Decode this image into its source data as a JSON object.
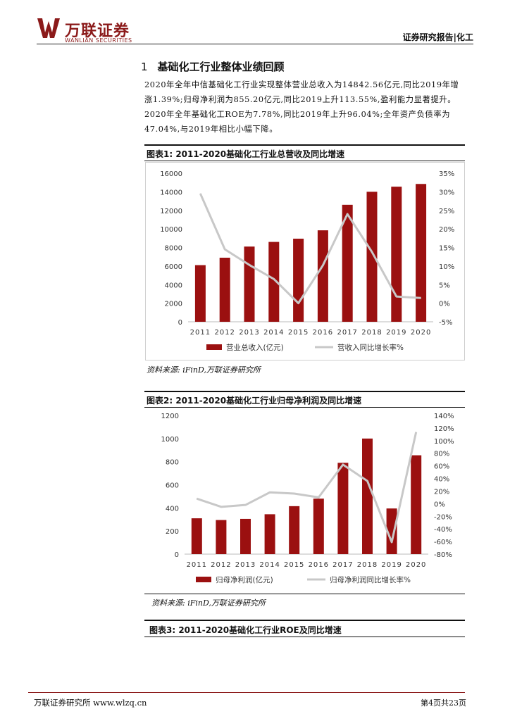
{
  "header": {
    "brand_cn": "万联证券",
    "brand_en": "WANLIAN SECURITIES",
    "category": "证券研究报告|化工",
    "brand_color": "#8b1a1a"
  },
  "section": {
    "number": "1",
    "title": "基础化工行业整体业绩回顾",
    "summary": "2020年全年中信基础化工行业实现整体营业总收入为14842.56亿元,同比2019年增涨1.39%;归母净利润为855.20亿元,同比2019上升113.55%,盈利能力显著提升。2020年全年基础化工ROE为7.78%,同比2019年上升96.04%;全年资产负债率为47.04%,与2019年相比小幅下降。"
  },
  "figure1": {
    "title": "图表1: 2011-2020基础化工行业总营收及同比增速",
    "source": "资料来源: iFinD,万联证券研究所"
  },
  "figure2": {
    "title": "图表2: 2011-2020基础化工行业归母净利润及同比增速",
    "source": "资料来源: iFinD,万联证券研究所"
  },
  "figure3": {
    "title": "图表3: 2011-2020基础化工行业ROE及同比增速"
  },
  "footer": {
    "left": "万联证券研究所 www.wlzq.cn",
    "right": "第4页共23页"
  },
  "chart_data": [
    {
      "type": "bar",
      "categories": [
        "2011",
        "2012",
        "2013",
        "2014",
        "2015",
        "2016",
        "2017",
        "2018",
        "2019",
        "2020"
      ],
      "series": [
        {
          "name": "营业总收入(亿元)",
          "type": "bar",
          "axis": "left",
          "color": "#9b1010",
          "values": [
            6100,
            6900,
            8100,
            8600,
            8950,
            9850,
            12600,
            14000,
            14550,
            14842.56
          ]
        },
        {
          "name": "营收入同比增长率%",
          "type": "line",
          "axis": "right",
          "color": "#c8c8c8",
          "values": [
            29.5,
            14.5,
            10.3,
            6.5,
            0.0,
            10.2,
            24.0,
            13.8,
            1.8,
            1.39
          ]
        }
      ],
      "yticks_left": [
        "0",
        "2000",
        "4000",
        "6000",
        "8000",
        "10000",
        "12000",
        "14000",
        "16000"
      ],
      "yticks_right": [
        "-5%",
        "0%",
        "5%",
        "10%",
        "15%",
        "20%",
        "25%",
        "30%",
        "35%"
      ],
      "ylim_left": [
        0,
        16000
      ],
      "ylim_right": [
        -5,
        35
      ],
      "legend": "bottom"
    },
    {
      "type": "bar",
      "categories": [
        "2011",
        "2012",
        "2013",
        "2014",
        "2015",
        "2016",
        "2017",
        "2018",
        "2019",
        "2020"
      ],
      "series": [
        {
          "name": "归母净利润(亿元)",
          "type": "bar",
          "axis": "left",
          "color": "#9b1010",
          "values": [
            310,
            295,
            305,
            345,
            415,
            480,
            790,
            1000,
            395,
            855.2
          ]
        },
        {
          "name": "归母净利润同比增长率%",
          "type": "line",
          "axis": "right",
          "color": "#c8c8c8",
          "values": [
            8,
            -5,
            -2,
            18,
            16,
            10,
            62,
            36,
            -61,
            113.55
          ]
        }
      ],
      "yticks_left": [
        "0",
        "200",
        "400",
        "600",
        "800",
        "1000",
        "1200"
      ],
      "yticks_right": [
        "-80%",
        "-60%",
        "-40%",
        "-20%",
        "0%",
        "20%",
        "40%",
        "60%",
        "80%",
        "100%",
        "120%",
        "140%"
      ],
      "ylim_left": [
        0,
        1200
      ],
      "ylim_right": [
        -80,
        140
      ],
      "legend": "bottom"
    }
  ]
}
